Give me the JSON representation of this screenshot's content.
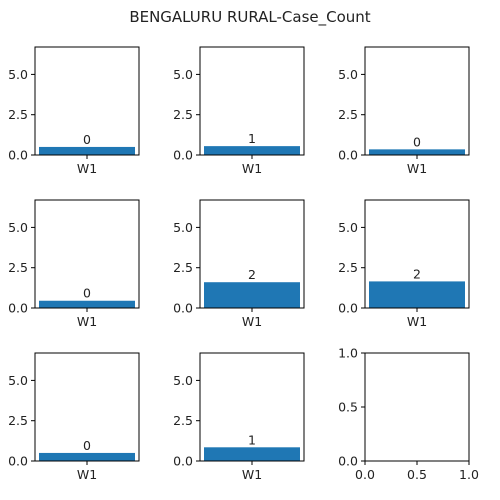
{
  "chart_data": {
    "type": "bar",
    "title": "BENGALURU RURAL-Case_Count",
    "colors": {
      "bar": "#1f77b4",
      "axis": "#000000",
      "text": "#222222"
    },
    "panels": [
      {
        "categories": [
          "W1"
        ],
        "values": [
          0.5
        ],
        "data_labels": [
          "0"
        ],
        "ylim": [
          0,
          6.7
        ],
        "yticks": [
          "0.0",
          "2.5",
          "5.0"
        ],
        "ytick_values": [
          0,
          2.5,
          5.0
        ]
      },
      {
        "categories": [
          "W1"
        ],
        "values": [
          0.55
        ],
        "data_labels": [
          "1"
        ],
        "ylim": [
          0,
          6.7
        ],
        "yticks": [
          "0.0",
          "2.5",
          "5.0"
        ],
        "ytick_values": [
          0,
          2.5,
          5.0
        ]
      },
      {
        "categories": [
          "W1"
        ],
        "values": [
          0.35
        ],
        "data_labels": [
          "0"
        ],
        "ylim": [
          0,
          6.7
        ],
        "yticks": [
          "0.0",
          "2.5",
          "5.0"
        ],
        "ytick_values": [
          0,
          2.5,
          5.0
        ]
      },
      {
        "categories": [
          "W1"
        ],
        "values": [
          0.45
        ],
        "data_labels": [
          "0"
        ],
        "ylim": [
          0,
          6.7
        ],
        "yticks": [
          "0.0",
          "2.5",
          "5.0"
        ],
        "ytick_values": [
          0,
          2.5,
          5.0
        ]
      },
      {
        "categories": [
          "W1"
        ],
        "values": [
          1.6
        ],
        "data_labels": [
          "2"
        ],
        "ylim": [
          0,
          6.7
        ],
        "yticks": [
          "0.0",
          "2.5",
          "5.0"
        ],
        "ytick_values": [
          0,
          2.5,
          5.0
        ]
      },
      {
        "categories": [
          "W1"
        ],
        "values": [
          1.65
        ],
        "data_labels": [
          "2"
        ],
        "ylim": [
          0,
          6.7
        ],
        "yticks": [
          "0.0",
          "2.5",
          "5.0"
        ],
        "ytick_values": [
          0,
          2.5,
          5.0
        ]
      },
      {
        "categories": [
          "W1"
        ],
        "values": [
          0.5
        ],
        "data_labels": [
          "0"
        ],
        "ylim": [
          0,
          6.7
        ],
        "yticks": [
          "0.0",
          "2.5",
          "5.0"
        ],
        "ytick_values": [
          0,
          2.5,
          5.0
        ]
      },
      {
        "categories": [
          "W1"
        ],
        "values": [
          0.85
        ],
        "data_labels": [
          "1"
        ],
        "ylim": [
          0,
          6.7
        ],
        "yticks": [
          "0.0",
          "2.5",
          "5.0"
        ],
        "ytick_values": [
          0,
          2.5,
          5.0
        ]
      },
      {
        "empty": true,
        "xlim": [
          0,
          1
        ],
        "ylim": [
          0,
          1
        ],
        "xticks": [
          "0.0",
          "0.5",
          "1.0"
        ],
        "xtick_values": [
          0,
          0.5,
          1.0
        ],
        "yticks": [
          "0.0",
          "0.5",
          "1.0"
        ],
        "ytick_values": [
          0,
          0.5,
          1.0
        ]
      }
    ]
  }
}
